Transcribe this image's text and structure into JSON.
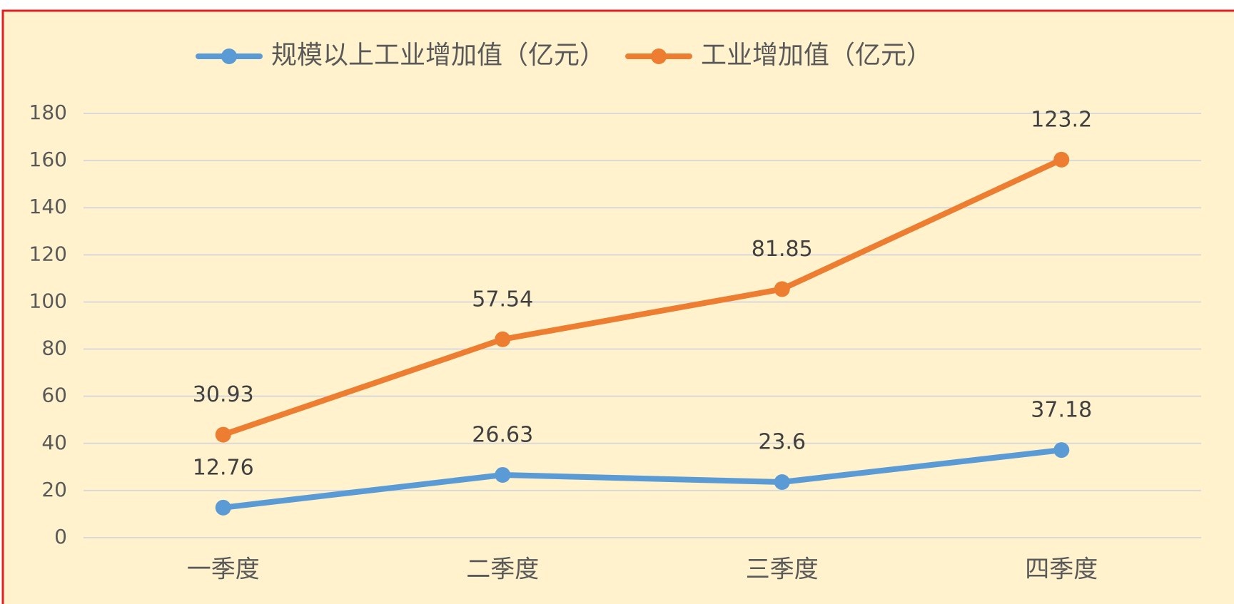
{
  "chart_data": {
    "type": "line",
    "stacked": true,
    "categories": [
      "一季度",
      "二季度",
      "三季度",
      "四季度"
    ],
    "series": [
      {
        "name": "规模以上工业增加值（亿元）",
        "color": "#5b9bd5",
        "values": [
          12.76,
          26.63,
          23.6,
          37.18
        ]
      },
      {
        "name": "工业增加值（亿元）",
        "color": "#ed7d31",
        "values": [
          30.93,
          57.54,
          81.85,
          123.2
        ]
      }
    ],
    "ylim": [
      0,
      180
    ],
    "yticks": [
      0,
      20,
      40,
      60,
      80,
      100,
      120,
      140,
      160,
      180
    ],
    "grid": true,
    "legend": "top"
  }
}
